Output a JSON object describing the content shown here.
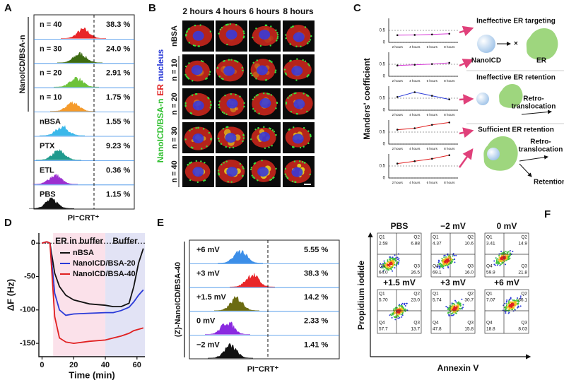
{
  "panel_letters": [
    "A",
    "B",
    "C",
    "D",
    "E",
    "F"
  ],
  "panel_a": {
    "group_label": "NanoICD/BSA-n",
    "x_label": "PI⁻CRT⁺",
    "rows": [
      {
        "label": "n = 40",
        "percent": "38.3 %",
        "color": "#e8262a"
      },
      {
        "label": "n = 30",
        "percent": "24.0 %",
        "color": "#3d6b12"
      },
      {
        "label": "n = 20",
        "percent": "2.91 %",
        "color": "#6cc23a"
      },
      {
        "label": "n = 10",
        "percent": "1.75 %",
        "color": "#f59a2a"
      },
      {
        "label": "nBSA",
        "percent": "1.55 %",
        "color": "#3bb8ea"
      },
      {
        "label": "PTX",
        "percent": "9.23 %",
        "color": "#1f9a8e"
      },
      {
        "label": "ETL",
        "percent": "0.36 %",
        "color": "#9b2fd0"
      },
      {
        "label": "PBS",
        "percent": "1.15 %",
        "color": "#111111"
      }
    ]
  },
  "panel_b": {
    "columns": [
      "2 hours",
      "4 hours",
      "6 hours",
      "8 hours"
    ],
    "rows": [
      "nBSA",
      "n = 10",
      "n = 20",
      "n = 30",
      "n = 40"
    ],
    "side_label": [
      "NanoICD/BSA-n",
      "ER",
      "nucleus"
    ]
  },
  "panel_c": {
    "y_label": "Manders' coefficient",
    "ineffective_targeting": "Ineffective ER targeting",
    "nanoicd": "NanoICD",
    "er": "ER",
    "ineffective_retention": "Ineffective ER retention",
    "retro_1": [
      "Retro-",
      "translocation"
    ],
    "sufficient_retention": "Sufficient ER retention",
    "retro_2": [
      "Retro-",
      "translocation"
    ],
    "retention_in_er": "Retention in ER"
  },
  "chart_data": [
    {
      "type": "line",
      "categories": [
        "2 hours",
        "4 hours",
        "6 hours",
        "8 hours"
      ],
      "values": [
        0.3,
        0.31,
        0.33,
        0.36
      ],
      "color": "#d63bd6",
      "ylim": [
        0,
        1
      ],
      "yticks": [
        0,
        0.5
      ]
    },
    {
      "type": "line",
      "categories": [
        "2 hours",
        "4 hours",
        "6 hours",
        "8 hours"
      ],
      "values": [
        0.45,
        0.48,
        0.51,
        0.56
      ],
      "color": "#d63bd6",
      "ylim": [
        0,
        1
      ],
      "yticks": [
        0,
        0.5
      ]
    },
    {
      "type": "line",
      "categories": [
        "2 hours",
        "4 hours",
        "6 hours",
        "8 hours"
      ],
      "values": [
        0.55,
        0.75,
        0.6,
        0.45
      ],
      "color": "#2a3ad8",
      "ylim": [
        0,
        1
      ],
      "yticks": [
        0,
        0.5
      ]
    },
    {
      "type": "line",
      "categories": [
        "2 hours",
        "4 hours",
        "6 hours",
        "8 hours"
      ],
      "values": [
        0.6,
        0.66,
        0.8,
        0.9
      ],
      "color": "#e02020",
      "ylim": [
        0,
        1
      ],
      "yticks": [
        0,
        0.5
      ]
    },
    {
      "type": "line",
      "categories": [
        "2 hours",
        "4 hours",
        "6 hours",
        "8 hours"
      ],
      "values": [
        0.6,
        0.7,
        0.8,
        0.95
      ],
      "color": "#e02020",
      "ylim": [
        0,
        1
      ],
      "yticks": [
        0,
        0.5
      ]
    },
    {
      "type": "line",
      "x": [
        0,
        3,
        5,
        8,
        11,
        15,
        20,
        30,
        40,
        45,
        50,
        55,
        58,
        61,
        64
      ],
      "series": [
        {
          "name": "nBSA",
          "color": "#111111",
          "values": [
            0,
            2,
            0,
            -45,
            -65,
            -78,
            -85,
            -91,
            -93,
            -95,
            -95,
            -90,
            -65,
            -30,
            -8
          ]
        },
        {
          "name": "NanoICD/BSA-20",
          "color": "#2a3ad8",
          "values": [
            0,
            2,
            0,
            -75,
            -100,
            -108,
            -106,
            -105,
            -104,
            -104,
            -101,
            -96,
            -88,
            -78,
            -70
          ]
        },
        {
          "name": "NanoICD/BSA-40",
          "color": "#e02020",
          "values": [
            0,
            2,
            0,
            -110,
            -142,
            -148,
            -150,
            -147,
            -145,
            -142,
            -139,
            -135,
            -131,
            -129,
            -127
          ]
        }
      ],
      "xlim": [
        -2,
        65
      ],
      "xticks": [
        0,
        20,
        40,
        60
      ],
      "ylim": [
        -170,
        15
      ],
      "yticks": [
        0,
        -50,
        -100,
        -150
      ],
      "x_label": "Time (min)",
      "y_label": "ΔF (Hz)",
      "regions": [
        {
          "label": "ER in buffer",
          "x": [
            7,
            40
          ],
          "color": "#fbe1ea"
        },
        {
          "label": "Buffer",
          "x": [
            40,
            65
          ],
          "color": "#e2e3f5"
        }
      ],
      "legend": "upper left"
    }
  ],
  "panel_e": {
    "group_label": "(Z)-NanoICD/BSA-40",
    "x_label": "PI⁻CRT⁺",
    "rows": [
      {
        "label": "+6 mV",
        "percent": "5.55 %",
        "color": "#3b8ee8"
      },
      {
        "label": "+3 mV",
        "percent": "38.3 %",
        "color": "#e8262a"
      },
      {
        "label": "+1.5 mV",
        "percent": "14.2 %",
        "color": "#6b6b12"
      },
      {
        "label": "0 mV",
        "percent": "2.33 %",
        "color": "#8a2ae0"
      },
      {
        "label": "−2 mV",
        "percent": "1.41 %",
        "color": "#111111"
      }
    ]
  },
  "panel_f": {
    "y_label": "Propidium iodide",
    "x_label": "Annexin V",
    "quadrants": [
      "Q1",
      "Q2",
      "Q3",
      "Q4"
    ],
    "plots": [
      {
        "title": "PBS",
        "q1": "2.58",
        "q2": "6.88",
        "q3": "26.5",
        "q4": "64.0"
      },
      {
        "title": "−2 mV",
        "q1": "4.37",
        "q2": "10.6",
        "q3": "16.0",
        "q4": "69.1"
      },
      {
        "title": "0 mV",
        "q1": "3.41",
        "q2": "14.9",
        "q3": "21.8",
        "q4": "59.9"
      },
      {
        "title": "+1.5 mV",
        "q1": "5.70",
        "q2": "23.0",
        "q3": "13.7",
        "q4": "57.7"
      },
      {
        "title": "+3 mV",
        "q1": "5.74",
        "q2": "30.7",
        "q3": "15.8",
        "q4": "47.8"
      },
      {
        "title": "+6 mV",
        "q1": "7.07",
        "q2": "66.1",
        "q3": "8.03",
        "q4": "18.8"
      }
    ]
  }
}
